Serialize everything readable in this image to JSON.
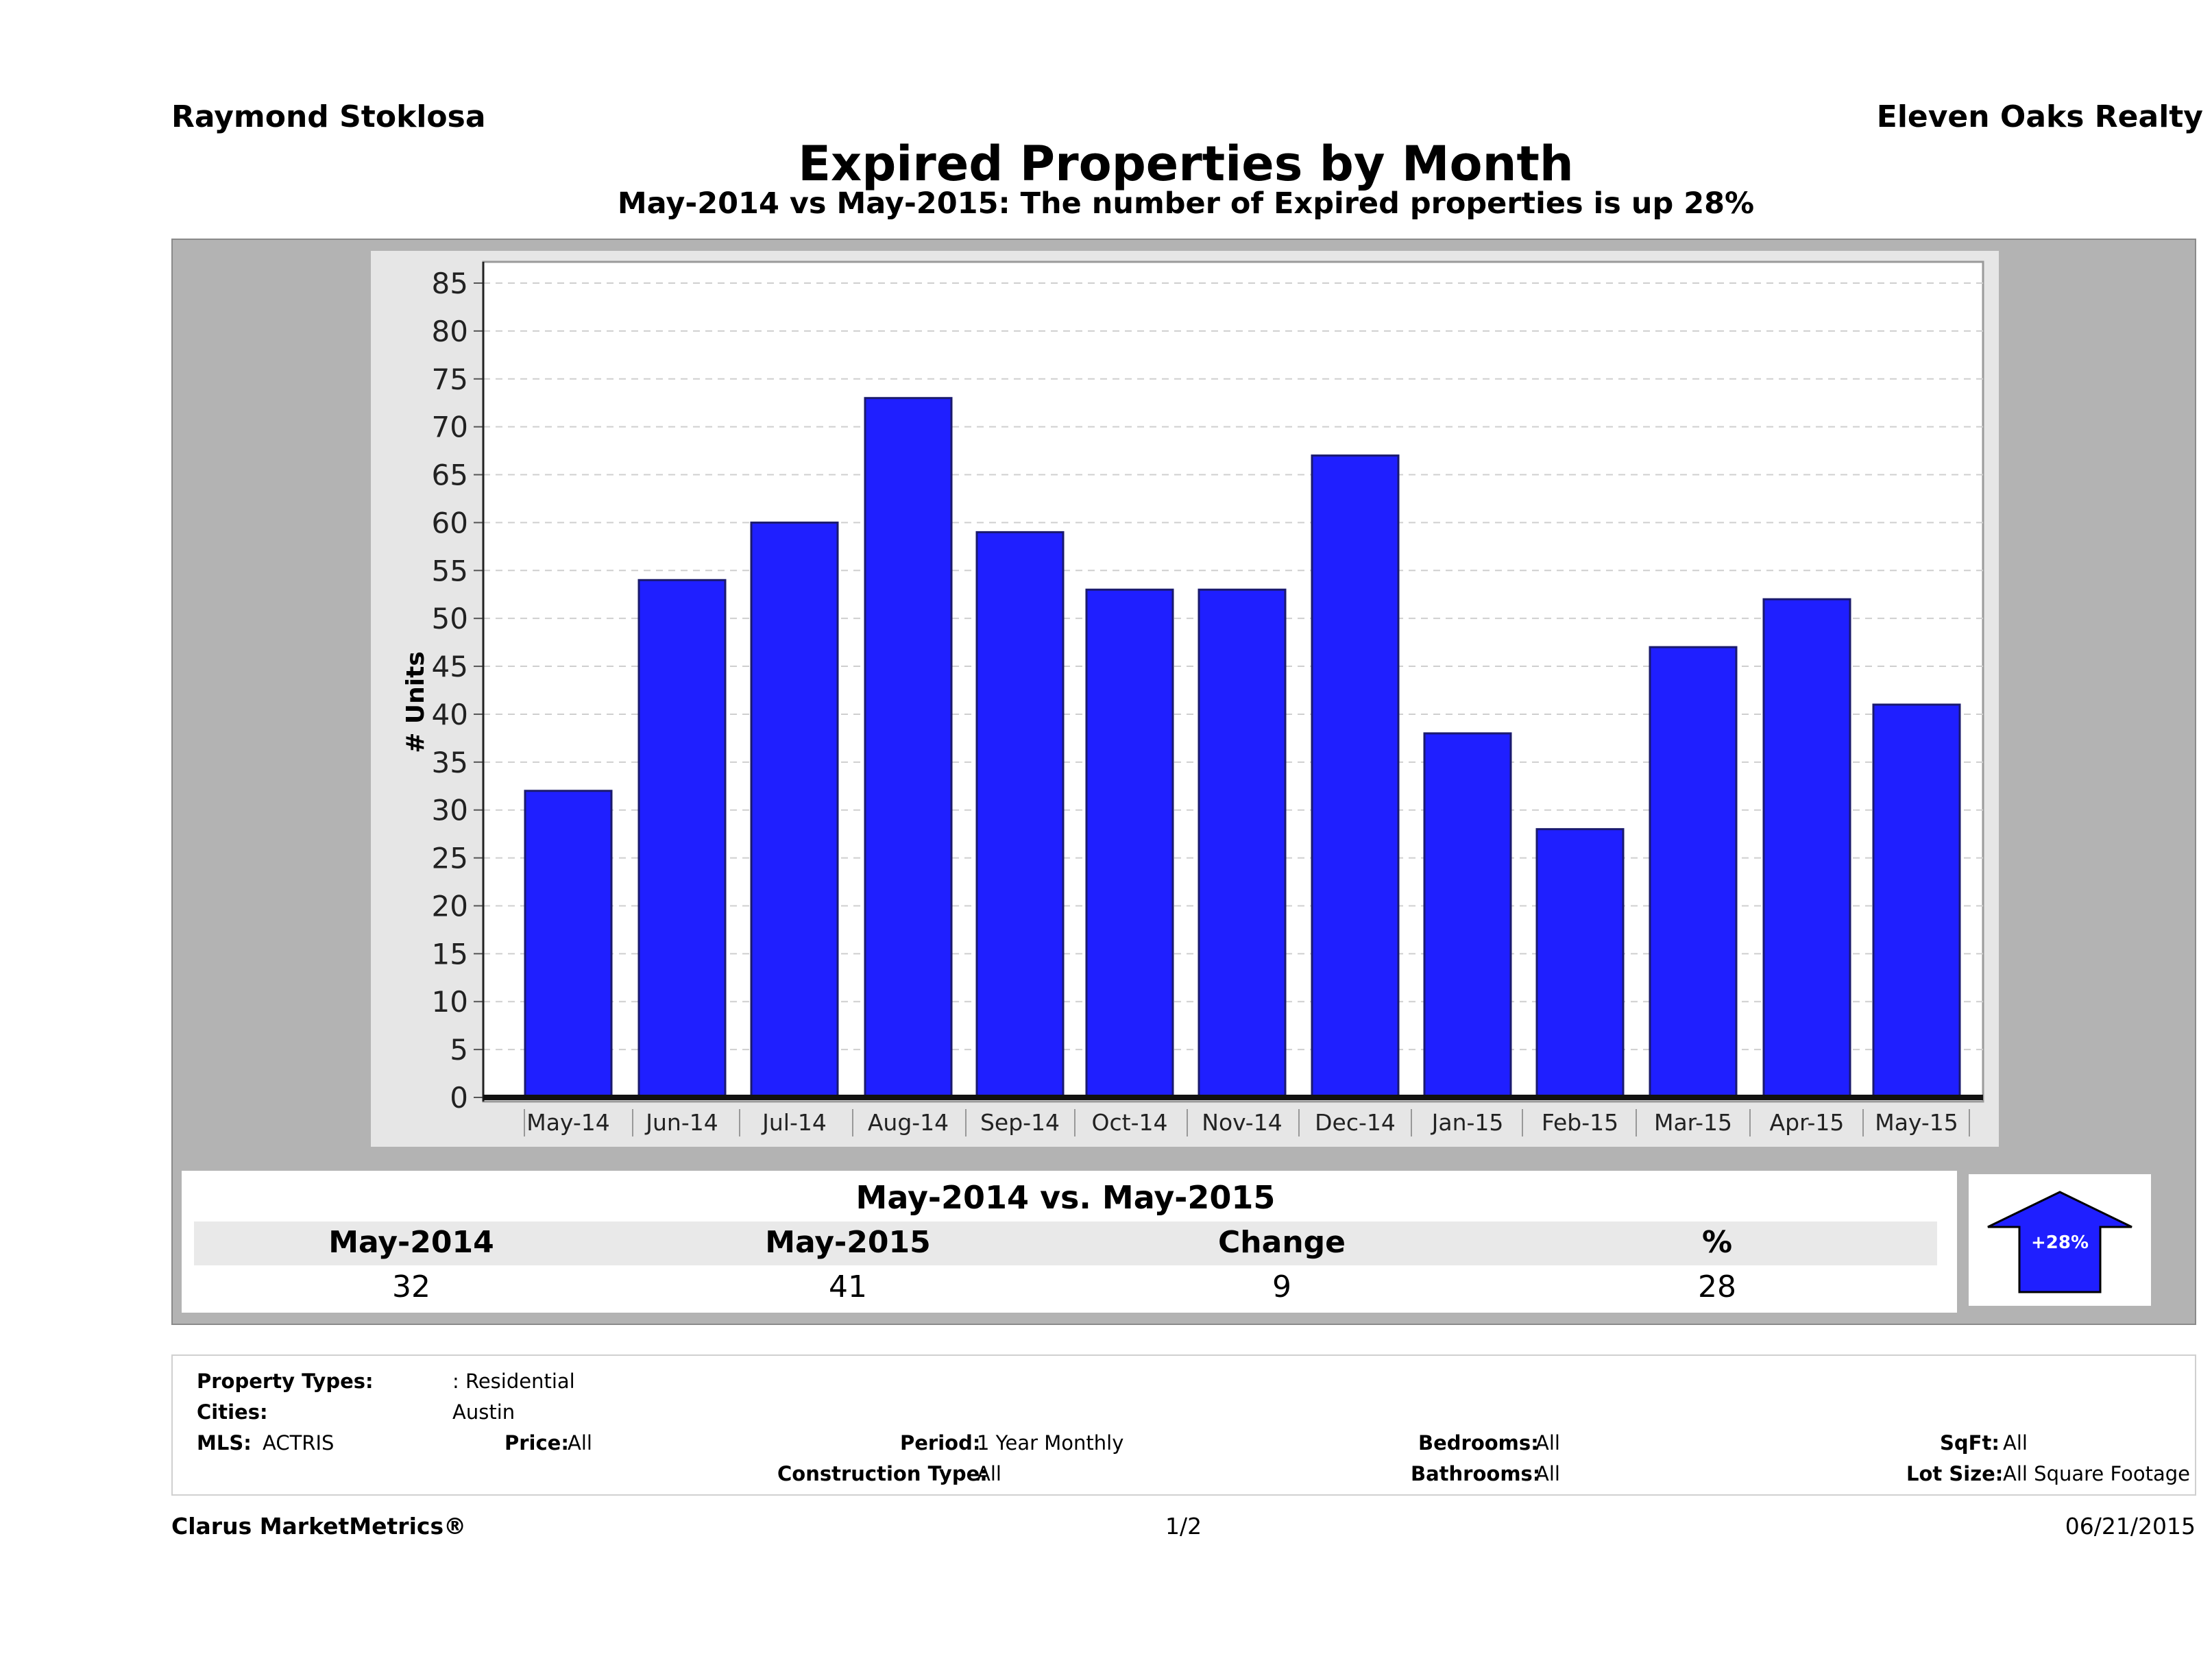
{
  "header": {
    "agent": "Raymond Stoklosa",
    "broker": "Eleven Oaks Realty",
    "title": "Expired Properties by Month",
    "subtitle": "May-2014 vs May-2015: The number of Expired  properties is up 28%"
  },
  "chart_data": {
    "type": "bar",
    "categories": [
      "May-14",
      "Jun-14",
      "Jul-14",
      "Aug-14",
      "Sep-14",
      "Oct-14",
      "Nov-14",
      "Dec-14",
      "Jan-15",
      "Feb-15",
      "Mar-15",
      "Apr-15",
      "May-15"
    ],
    "values": [
      32,
      54,
      60,
      73,
      59,
      53,
      53,
      67,
      38,
      28,
      47,
      52,
      41
    ],
    "ylabel": "# Units",
    "ylim": [
      0,
      85
    ],
    "yticks": [
      0,
      5,
      10,
      15,
      20,
      25,
      30,
      35,
      40,
      45,
      50,
      55,
      60,
      65,
      70,
      75,
      80,
      85
    ],
    "grid": true,
    "bar_color": "#1f1fff"
  },
  "summary": {
    "title": "May-2014 vs. May-2015",
    "headers": [
      "May-2014",
      "May-2015",
      "Change",
      "%"
    ],
    "values": [
      "32",
      "41",
      "9",
      "28"
    ],
    "badge": "+28%",
    "badge_color": "#1f1fff"
  },
  "criteria": {
    "property_types_label": "Property Types:",
    "property_types_value": ": Residential",
    "cities_label": "Cities:",
    "cities_value": "Austin",
    "mls_label": "MLS:",
    "mls_value": "ACTRIS",
    "price_label": "Price:",
    "price_value": "All",
    "period_label": "Period:",
    "period_value": "1 Year Monthly",
    "construction_label": "Construction Type:",
    "construction_value": "All",
    "bedrooms_label": "Bedrooms:",
    "bedrooms_value": "All",
    "bathrooms_label": "Bathrooms:",
    "bathrooms_value": "All",
    "sqft_label": "SqFt:",
    "sqft_value": "All",
    "lotsize_label": "Lot Size:",
    "lotsize_value": "All Square Footage"
  },
  "footer": {
    "brand": "Clarus MarketMetrics®",
    "page": "1/2",
    "date": "06/21/2015"
  }
}
